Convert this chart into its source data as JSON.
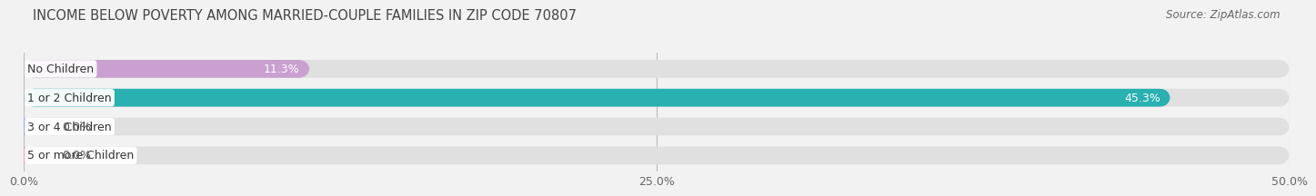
{
  "title": "INCOME BELOW POVERTY AMONG MARRIED-COUPLE FAMILIES IN ZIP CODE 70807",
  "source": "Source: ZipAtlas.com",
  "categories": [
    "No Children",
    "1 or 2 Children",
    "3 or 4 Children",
    "5 or more Children"
  ],
  "values": [
    11.3,
    45.3,
    0.0,
    0.0
  ],
  "bar_colors": [
    "#c9a0d0",
    "#29b0b0",
    "#a0a8e8",
    "#f4a0b8"
  ],
  "xlim": [
    0,
    50
  ],
  "xticks": [
    0.0,
    25.0,
    50.0
  ],
  "xtick_labels": [
    "0.0%",
    "25.0%",
    "50.0%"
  ],
  "bar_height": 0.62,
  "bar_gap": 1.0,
  "background_color": "#f2f2f2",
  "bar_bg_color": "#e0e0e0",
  "title_fontsize": 10.5,
  "label_fontsize": 9,
  "value_fontsize": 9,
  "source_fontsize": 8.5
}
